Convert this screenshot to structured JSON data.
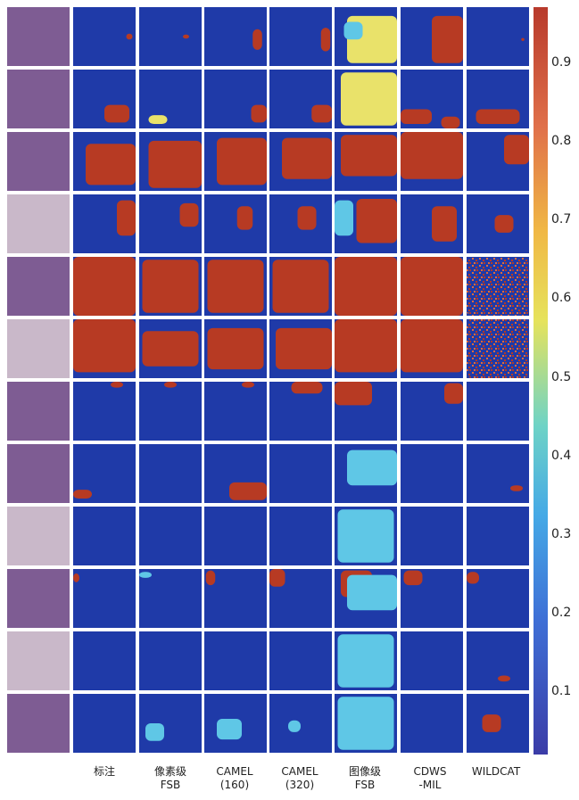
{
  "column_labels": [
    "",
    "标注",
    "像素级\nFSB",
    "CAMEL\n(160)",
    "CAMEL\n(320)",
    "图像级\nFSB",
    "CDWS\n-MIL",
    "WILDCAT"
  ],
  "colorbar": {
    "ticks": [
      "0.9",
      "0.8",
      "0.7",
      "0.6",
      "0.5",
      "0.4",
      "0.3",
      "0.2",
      "0.1"
    ],
    "tick_values": [
      0.9,
      0.8,
      0.7,
      0.6,
      0.5,
      0.4,
      0.3,
      0.2,
      0.1
    ],
    "colors": {
      "low": "#2f3aa6",
      "mid": "#58c3e0",
      "high": "#b83a2c"
    }
  },
  "colors": {
    "background_blue": "#1f3aa8",
    "red": "#b73a23",
    "orange": "#e06a3a",
    "cyan": "#5fc7e6",
    "yellow": "#e9e26a",
    "tissue_purple": "#7e5c93",
    "tissue_pale": "#c9b8c9"
  },
  "rows": [
    {
      "masks": [
        [
          [
            0.9,
            0.5,
            0.1,
            0.1,
            "r"
          ]
        ],
        [
          [
            0.75,
            0.5,
            0.1,
            0.07,
            "r"
          ]
        ],
        [
          [
            0.85,
            0.55,
            0.15,
            0.35,
            "r"
          ]
        ],
        [
          [
            0.9,
            0.55,
            0.15,
            0.4,
            "r"
          ]
        ],
        [
          [
            0.6,
            0.55,
            0.8,
            0.8,
            "y"
          ],
          [
            0.3,
            0.4,
            0.3,
            0.3,
            "c"
          ]
        ],
        [
          [
            0.75,
            0.55,
            0.5,
            0.8,
            "r"
          ]
        ],
        [
          [
            0.9,
            0.55,
            0.05,
            0.05,
            "r"
          ]
        ]
      ]
    },
    {
      "masks": [
        [
          [
            0.7,
            0.75,
            0.4,
            0.3,
            "r"
          ]
        ],
        [
          [
            0.3,
            0.85,
            0.3,
            0.15,
            "y"
          ]
        ],
        [
          [
            0.9,
            0.75,
            0.3,
            0.3,
            "r"
          ]
        ],
        [
          [
            0.85,
            0.75,
            0.35,
            0.3,
            "r"
          ]
        ],
        [
          [
            0.55,
            0.5,
            0.9,
            0.9,
            "y"
          ]
        ],
        [
          [
            0.2,
            0.8,
            0.5,
            0.25,
            "r"
          ],
          [
            0.8,
            0.9,
            0.3,
            0.2,
            "r"
          ]
        ],
        [
          [
            0.5,
            0.8,
            0.7,
            0.25,
            "r"
          ]
        ]
      ]
    },
    {
      "masks": [
        [
          [
            0.6,
            0.55,
            0.8,
            0.7,
            "r"
          ]
        ],
        [
          [
            0.6,
            0.55,
            0.9,
            0.8,
            "r"
          ]
        ],
        [
          [
            0.6,
            0.5,
            0.8,
            0.8,
            "r"
          ]
        ],
        [
          [
            0.6,
            0.45,
            0.8,
            0.7,
            "r"
          ]
        ],
        [
          [
            0.55,
            0.4,
            0.9,
            0.7,
            "r"
          ]
        ],
        [
          [
            0.5,
            0.4,
            1.0,
            0.8,
            "r"
          ]
        ],
        [
          [
            0.8,
            0.3,
            0.4,
            0.5,
            "r"
          ]
        ]
      ]
    },
    {
      "masks": [
        [
          [
            0.85,
            0.4,
            0.3,
            0.6,
            "r"
          ]
        ],
        [
          [
            0.8,
            0.35,
            0.3,
            0.4,
            "r"
          ]
        ],
        [
          [
            0.65,
            0.4,
            0.25,
            0.4,
            "r"
          ]
        ],
        [
          [
            0.6,
            0.4,
            0.3,
            0.4,
            "r"
          ]
        ],
        [
          [
            0.7,
            0.45,
            0.7,
            0.75,
            "r"
          ],
          [
            0.15,
            0.4,
            0.3,
            0.6,
            "c"
          ]
        ],
        [
          [
            0.7,
            0.5,
            0.4,
            0.6,
            "r"
          ]
        ],
        [
          [
            0.6,
            0.5,
            0.3,
            0.3,
            "r"
          ]
        ]
      ]
    },
    {
      "masks": [
        [
          [
            0.5,
            0.5,
            1.0,
            1.0,
            "r"
          ]
        ],
        [
          [
            0.5,
            0.5,
            0.9,
            0.9,
            "r"
          ]
        ],
        [
          [
            0.5,
            0.5,
            0.9,
            0.9,
            "r"
          ]
        ],
        [
          [
            0.5,
            0.5,
            0.9,
            0.9,
            "r"
          ]
        ],
        [
          [
            0.5,
            0.5,
            1.0,
            1.0,
            "r"
          ]
        ],
        [
          [
            0.5,
            0.5,
            1.0,
            1.0,
            "r"
          ]
        ],
        [
          [
            0.5,
            0.5,
            1.0,
            1.0,
            "n"
          ]
        ]
      ]
    },
    {
      "masks": [
        [
          [
            0.5,
            0.45,
            1.0,
            0.9,
            "r"
          ]
        ],
        [
          [
            0.5,
            0.5,
            0.9,
            0.6,
            "r"
          ]
        ],
        [
          [
            0.5,
            0.5,
            0.9,
            0.7,
            "r"
          ]
        ],
        [
          [
            0.55,
            0.5,
            0.9,
            0.7,
            "r"
          ]
        ],
        [
          [
            0.5,
            0.45,
            1.0,
            0.9,
            "r"
          ]
        ],
        [
          [
            0.5,
            0.45,
            1.0,
            0.9,
            "r"
          ]
        ],
        [
          [
            0.5,
            0.5,
            1.0,
            1.0,
            "n"
          ]
        ]
      ]
    },
    {
      "masks": [
        [
          [
            0.7,
            0.05,
            0.2,
            0.1,
            "r"
          ]
        ],
        [
          [
            0.5,
            0.05,
            0.2,
            0.1,
            "r"
          ]
        ],
        [
          [
            0.7,
            0.05,
            0.2,
            0.1,
            "r"
          ]
        ],
        [
          [
            0.6,
            0.1,
            0.5,
            0.2,
            "r"
          ]
        ],
        [
          [
            0.3,
            0.2,
            0.6,
            0.4,
            "r"
          ]
        ],
        [
          [
            0.85,
            0.2,
            0.3,
            0.35,
            "r"
          ]
        ],
        []
      ]
    },
    {
      "masks": [
        [
          [
            0.15,
            0.85,
            0.3,
            0.15,
            "r"
          ]
        ],
        [],
        [
          [
            0.7,
            0.8,
            0.6,
            0.3,
            "r"
          ]
        ],
        [],
        [
          [
            0.6,
            0.4,
            0.8,
            0.6,
            "c"
          ]
        ],
        [],
        [
          [
            0.8,
            0.75,
            0.2,
            0.1,
            "r"
          ]
        ]
      ]
    },
    {
      "masks": [
        [],
        [],
        [],
        [],
        [
          [
            0.5,
            0.5,
            0.9,
            0.9,
            "c"
          ]
        ],
        [],
        []
      ]
    },
    {
      "masks": [
        [
          [
            0.05,
            0.15,
            0.1,
            0.15,
            "r"
          ]
        ],
        [
          [
            0.1,
            0.1,
            0.2,
            0.1,
            "c"
          ]
        ],
        [
          [
            0.1,
            0.15,
            0.15,
            0.25,
            "r"
          ]
        ],
        [
          [
            0.1,
            0.15,
            0.25,
            0.3,
            "r"
          ]
        ],
        [
          [
            0.35,
            0.25,
            0.5,
            0.45,
            "r"
          ],
          [
            0.6,
            0.4,
            0.8,
            0.6,
            "c"
          ]
        ],
        [
          [
            0.2,
            0.15,
            0.3,
            0.25,
            "r"
          ]
        ],
        [
          [
            0.1,
            0.15,
            0.2,
            0.2,
            "r"
          ]
        ]
      ]
    },
    {
      "masks": [
        [],
        [],
        [],
        [],
        [
          [
            0.5,
            0.5,
            0.9,
            0.9,
            "c"
          ]
        ],
        [],
        [
          [
            0.6,
            0.8,
            0.2,
            0.1,
            "r"
          ]
        ]
      ]
    },
    {
      "masks": [
        [],
        [
          [
            0.25,
            0.65,
            0.3,
            0.3,
            "c"
          ]
        ],
        [
          [
            0.4,
            0.6,
            0.4,
            0.35,
            "c"
          ]
        ],
        [
          [
            0.4,
            0.55,
            0.2,
            0.2,
            "c"
          ]
        ],
        [
          [
            0.5,
            0.5,
            0.9,
            0.9,
            "c"
          ]
        ],
        [],
        [
          [
            0.4,
            0.5,
            0.3,
            0.3,
            "r"
          ]
        ]
      ]
    }
  ]
}
